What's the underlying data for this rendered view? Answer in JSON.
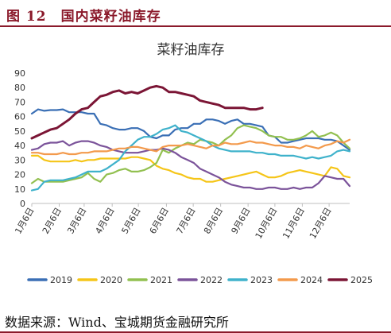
{
  "figure": {
    "heading": "图 12　国内菜籽油库存",
    "source": "数据来源：Wind、宝城期货金融研究所"
  },
  "colors": {
    "header": "#8b1a2b",
    "2019": "#3a6fb5",
    "2020": "#f5c518",
    "2021": "#92c050",
    "2022": "#7b539a",
    "2023": "#3fb2cb",
    "2024": "#f39a4c",
    "2025": "#7b1535"
  },
  "chart_data": {
    "type": "line",
    "title": "菜籽油库存",
    "xlabel": "",
    "ylabel": "",
    "ylim": [
      0,
      90
    ],
    "yticks": [
      0,
      10,
      20,
      30,
      40,
      50,
      60,
      70,
      80,
      90
    ],
    "x_axis": "day-of-year (week index 0..51)",
    "xticks": [
      {
        "label": "1月6日",
        "week": 0
      },
      {
        "label": "2月6日",
        "week": 4.4
      },
      {
        "label": "3月6日",
        "week": 8.4
      },
      {
        "label": "4月6日",
        "week": 12.9
      },
      {
        "label": "5月6日",
        "week": 17.1
      },
      {
        "label": "6月6日",
        "week": 21.6
      },
      {
        "label": "7月6日",
        "week": 25.9
      },
      {
        "label": "8月6日",
        "week": 30.3
      },
      {
        "label": "9月6日",
        "week": 34.7
      },
      {
        "label": "10月6日",
        "week": 39.0
      },
      {
        "label": "11月6日",
        "week": 43.4
      },
      {
        "label": "12月6日",
        "week": 47.7
      }
    ],
    "legend_position": "bottom",
    "series": [
      {
        "name": "2019",
        "values": [
          62,
          65,
          64,
          64.5,
          64.5,
          65,
          63,
          63,
          63,
          62,
          62,
          55,
          54,
          52,
          51,
          51,
          52,
          52,
          50,
          46,
          45,
          47,
          47,
          51,
          52,
          52,
          55,
          55,
          58,
          58,
          57,
          55,
          57,
          58,
          55,
          55,
          54,
          53,
          47,
          46,
          42,
          42,
          43,
          44,
          45,
          45,
          45,
          44,
          44,
          43,
          40,
          37
        ]
      },
      {
        "name": "2020",
        "values": [
          33,
          33,
          30,
          29,
          29,
          29,
          29,
          30,
          29,
          30,
          30,
          31,
          31,
          31,
          31,
          31,
          32,
          32,
          31,
          30,
          26,
          24,
          23,
          21,
          20,
          18,
          17,
          17,
          15,
          15,
          16,
          17,
          18,
          19,
          20,
          21,
          22,
          20,
          18,
          18,
          19,
          21,
          22,
          23,
          22,
          21,
          20,
          19,
          25,
          24,
          19,
          18
        ]
      },
      {
        "name": "2021",
        "values": [
          14,
          17,
          15,
          15,
          15,
          15,
          16,
          17,
          18,
          21,
          17,
          15,
          20,
          21,
          23,
          24,
          22,
          22,
          23,
          25,
          28,
          37,
          35,
          38,
          40,
          42,
          41,
          44,
          43,
          42,
          40,
          44,
          47,
          52,
          54,
          53,
          52,
          50,
          47,
          46,
          46,
          44,
          44,
          45,
          47,
          50,
          46,
          47,
          49,
          47,
          42,
          38
        ]
      },
      {
        "name": "2022",
        "values": [
          37,
          38,
          41,
          42,
          42,
          43,
          40,
          42,
          43,
          43,
          42,
          40,
          39,
          37,
          36,
          35,
          35,
          35,
          36,
          37,
          37,
          38,
          37,
          35,
          32,
          30,
          28,
          24,
          22,
          20,
          18,
          15,
          13,
          12,
          11,
          11,
          10,
          10,
          11,
          11,
          10,
          10,
          11,
          10,
          11,
          11,
          14,
          19,
          18,
          17,
          17,
          12
        ]
      },
      {
        "name": "2023",
        "values": [
          9,
          10,
          15,
          16,
          16,
          16,
          17,
          18,
          20,
          22,
          22,
          22,
          24,
          27,
          30,
          36,
          40,
          44,
          46,
          46,
          48,
          51,
          52,
          54,
          50,
          49,
          47,
          45,
          43,
          40,
          38,
          37,
          36,
          36,
          36,
          36,
          35,
          35,
          34,
          34,
          33,
          33,
          33,
          32,
          31,
          32,
          31,
          32,
          33,
          36,
          37,
          36
        ]
      },
      {
        "name": "2024",
        "values": [
          35,
          35,
          34,
          34,
          34,
          35,
          34,
          34,
          35,
          35,
          36,
          36,
          36,
          37,
          38,
          38,
          39,
          39,
          38,
          37,
          36,
          39,
          40,
          40,
          40,
          41,
          40,
          39,
          38,
          40,
          40,
          42,
          41,
          41,
          42,
          43,
          42,
          42,
          41,
          40,
          40,
          39,
          39,
          38,
          40,
          39,
          38,
          40,
          41,
          43,
          42,
          44
        ]
      },
      {
        "name": "2025",
        "values": [
          45,
          47,
          49,
          51,
          52,
          55,
          58,
          62,
          65,
          66,
          70,
          74,
          75,
          77,
          78,
          76,
          77,
          76,
          78,
          80,
          81,
          80,
          77,
          77,
          76,
          75,
          74,
          71,
          70,
          69,
          68,
          66,
          66,
          66,
          66,
          65,
          65,
          66
        ]
      }
    ]
  }
}
